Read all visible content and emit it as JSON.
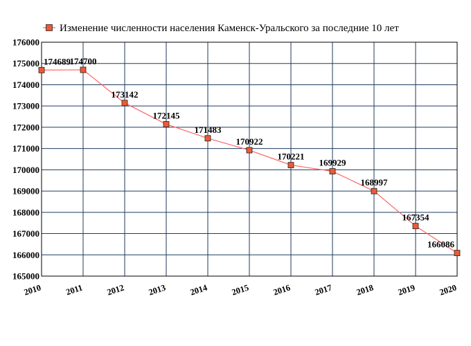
{
  "chart_data": {
    "type": "line",
    "legend": {
      "placement": "top",
      "label": "Изменение численности населения Каменск-Уральского за последние 10 лет"
    },
    "x": [
      "2010",
      "2011",
      "2012",
      "2013",
      "2014",
      "2015",
      "2016",
      "2017",
      "2018",
      "2019",
      "2020"
    ],
    "series": [
      {
        "name": "Изменение численности населения Каменск-Уральского за последние 10 лет",
        "values": [
          174689,
          174700,
          173142,
          172145,
          171483,
          170922,
          170221,
          169929,
          168997,
          167354,
          166086
        ],
        "labels": [
          "174689",
          "174700",
          "173142",
          "172145",
          "171483",
          "170922",
          "170221",
          "169929",
          "168997",
          "167354",
          "166086"
        ]
      }
    ],
    "ylim": [
      165000,
      176000
    ],
    "yticks": [
      "165000",
      "166000",
      "167000",
      "168000",
      "169000",
      "170000",
      "171000",
      "172000",
      "173000",
      "174000",
      "175000",
      "176000"
    ],
    "grid": true,
    "colors": {
      "line": "#ff6666",
      "marker_fill": "#ee5a33",
      "marker_stroke": "#222222",
      "grid": "#1f3a5f",
      "frame": "#000000"
    }
  }
}
